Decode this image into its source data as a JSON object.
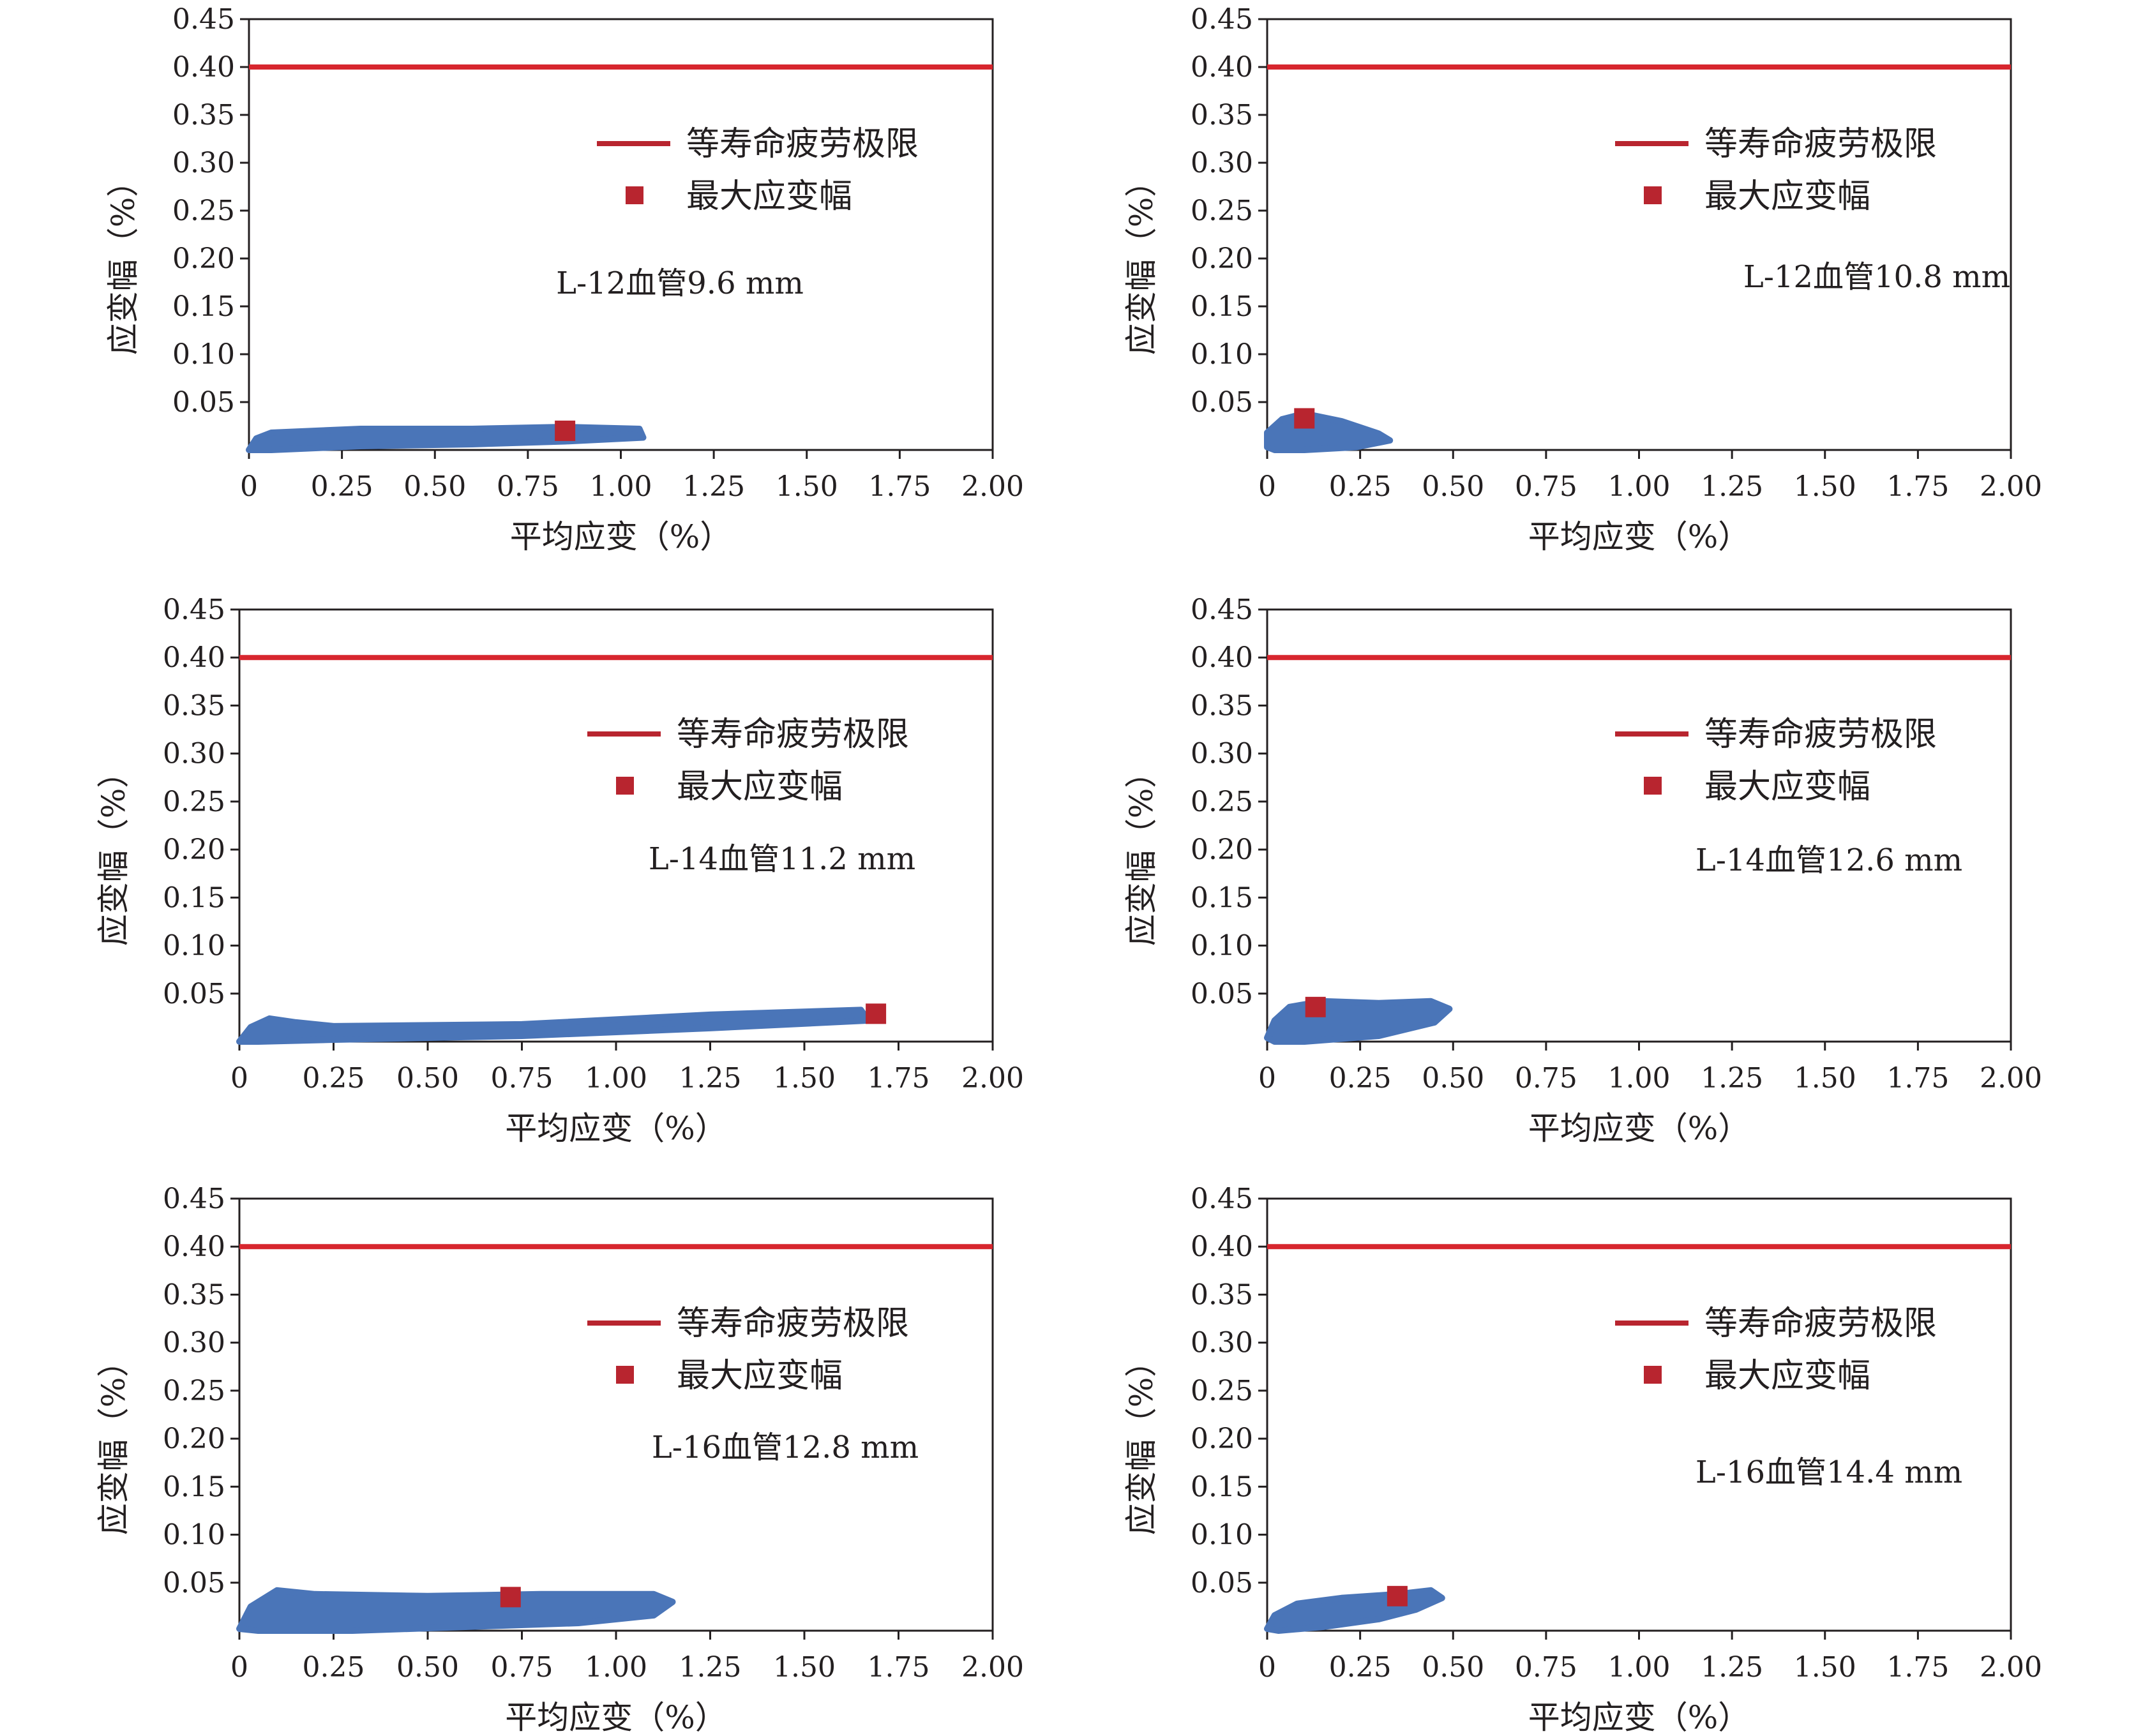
{
  "colors": {
    "limit_line": "#d7262e",
    "max_marker": "#b8252f",
    "cloud": "#4a75b8",
    "axis": "#231f20"
  },
  "chart_data": [
    {
      "type": "scatter",
      "annotation": "L-12血管9.6 mm",
      "xlabel": "平均应变（%）",
      "ylabel": "应变幅（%）",
      "xlim": [
        0,
        2.0
      ],
      "ylim": [
        0,
        0.45
      ],
      "xticks": [
        0,
        0.25,
        0.5,
        0.75,
        1.0,
        1.25,
        1.5,
        1.75,
        2.0
      ],
      "xtick_labels": [
        "0",
        "0.25",
        "0.50",
        "0.75",
        "1.00",
        "1.25",
        "1.50",
        "1.75",
        "2.00"
      ],
      "yticks": [
        0.05,
        0.1,
        0.15,
        0.2,
        0.25,
        0.3,
        0.35,
        0.4,
        0.45
      ],
      "ytick_labels": [
        "0.05",
        "0.10",
        "0.15",
        "0.20",
        "0.25",
        "0.30",
        "0.35",
        "0.40",
        "0.45"
      ],
      "legend": [
        "等寿命疲劳极限",
        "最大应变幅"
      ],
      "fatigue_limit": 0.4,
      "max_strain_amplitude": {
        "x": 0.85,
        "y": 0.02
      },
      "cloud_outline": [
        [
          0.0,
          0.0
        ],
        [
          0.02,
          0.012
        ],
        [
          0.06,
          0.018
        ],
        [
          0.3,
          0.022
        ],
        [
          0.6,
          0.022
        ],
        [
          0.85,
          0.024
        ],
        [
          1.05,
          0.022
        ],
        [
          1.06,
          0.013
        ],
        [
          0.85,
          0.009
        ],
        [
          0.6,
          0.006
        ],
        [
          0.3,
          0.004
        ],
        [
          0.06,
          0.0
        ]
      ]
    },
    {
      "type": "scatter",
      "annotation": "L-12血管10.8 mm",
      "xlabel": "平均应变（%）",
      "ylabel": "应变幅（%）",
      "xlim": [
        0,
        2.0
      ],
      "ylim": [
        0,
        0.45
      ],
      "xticks": [
        0,
        0.25,
        0.5,
        0.75,
        1.0,
        1.25,
        1.5,
        1.75,
        2.0
      ],
      "xtick_labels": [
        "0",
        "0.25",
        "0.50",
        "0.75",
        "1.00",
        "1.25",
        "1.50",
        "1.75",
        "2.00"
      ],
      "yticks": [
        0.05,
        0.1,
        0.15,
        0.2,
        0.25,
        0.3,
        0.35,
        0.4,
        0.45
      ],
      "ytick_labels": [
        "0.05",
        "0.10",
        "0.15",
        "0.20",
        "0.25",
        "0.30",
        "0.35",
        "0.40",
        "0.45"
      ],
      "legend": [
        "等寿命疲劳极限",
        "最大应变幅"
      ],
      "fatigue_limit": 0.4,
      "max_strain_amplitude": {
        "x": 0.1,
        "y": 0.033
      },
      "cloud_outline": [
        [
          0.0,
          0.003
        ],
        [
          0.0,
          0.018
        ],
        [
          0.04,
          0.032
        ],
        [
          0.1,
          0.038
        ],
        [
          0.2,
          0.03
        ],
        [
          0.3,
          0.017
        ],
        [
          0.33,
          0.01
        ],
        [
          0.24,
          0.003
        ],
        [
          0.1,
          0.0
        ],
        [
          0.02,
          0.0
        ]
      ]
    },
    {
      "type": "scatter",
      "annotation": "L-14血管11.2 mm",
      "xlabel": "平均应变（%）",
      "ylabel": "应变幅（%）",
      "xlim": [
        0,
        2.0
      ],
      "ylim": [
        0,
        0.45
      ],
      "xticks": [
        0,
        0.25,
        0.5,
        0.75,
        1.0,
        1.25,
        1.5,
        1.75,
        2.0
      ],
      "xtick_labels": [
        "0",
        "0.25",
        "0.50",
        "0.75",
        "1.00",
        "1.25",
        "1.50",
        "1.75",
        "2.00"
      ],
      "yticks": [
        0.05,
        0.1,
        0.15,
        0.2,
        0.25,
        0.3,
        0.35,
        0.4,
        0.45
      ],
      "ytick_labels": [
        "0.05",
        "0.10",
        "0.15",
        "0.20",
        "0.25",
        "0.30",
        "0.35",
        "0.40",
        "0.45"
      ],
      "legend": [
        "等寿命疲劳极限",
        "最大应变幅"
      ],
      "fatigue_limit": 0.4,
      "max_strain_amplitude": {
        "x": 1.69,
        "y": 0.029
      },
      "cloud_outline": [
        [
          0.0,
          0.0
        ],
        [
          0.03,
          0.015
        ],
        [
          0.08,
          0.024
        ],
        [
          0.15,
          0.02
        ],
        [
          0.25,
          0.016
        ],
        [
          0.75,
          0.018
        ],
        [
          1.25,
          0.028
        ],
        [
          1.65,
          0.033
        ],
        [
          1.67,
          0.022
        ],
        [
          1.25,
          0.014
        ],
        [
          0.75,
          0.006
        ],
        [
          0.25,
          0.002
        ],
        [
          0.05,
          0.0
        ]
      ]
    },
    {
      "type": "scatter",
      "annotation": "L-14血管12.6 mm",
      "xlabel": "平均应变（%）",
      "ylabel": "应变幅（%）",
      "xlim": [
        0,
        2.0
      ],
      "ylim": [
        0,
        0.45
      ],
      "xticks": [
        0,
        0.25,
        0.5,
        0.75,
        1.0,
        1.25,
        1.5,
        1.75,
        2.0
      ],
      "xtick_labels": [
        "0",
        "0.25",
        "0.50",
        "0.75",
        "1.00",
        "1.25",
        "1.50",
        "1.75",
        "2.00"
      ],
      "yticks": [
        0.05,
        0.1,
        0.15,
        0.2,
        0.25,
        0.3,
        0.35,
        0.4,
        0.45
      ],
      "ytick_labels": [
        "0.05",
        "0.10",
        "0.15",
        "0.20",
        "0.25",
        "0.30",
        "0.35",
        "0.40",
        "0.45"
      ],
      "legend": [
        "等寿命疲劳极限",
        "最大应变幅"
      ],
      "fatigue_limit": 0.4,
      "max_strain_amplitude": {
        "x": 0.13,
        "y": 0.036
      },
      "cloud_outline": [
        [
          0.0,
          0.004
        ],
        [
          0.02,
          0.022
        ],
        [
          0.06,
          0.036
        ],
        [
          0.15,
          0.042
        ],
        [
          0.3,
          0.04
        ],
        [
          0.44,
          0.042
        ],
        [
          0.49,
          0.034
        ],
        [
          0.45,
          0.02
        ],
        [
          0.3,
          0.006
        ],
        [
          0.1,
          0.0
        ],
        [
          0.02,
          0.0
        ]
      ]
    },
    {
      "type": "scatter",
      "annotation": "L-16血管12.8 mm",
      "xlabel": "平均应变（%）",
      "ylabel": "应变幅（%）",
      "xlim": [
        0,
        2.0
      ],
      "ylim": [
        0,
        0.45
      ],
      "xticks": [
        0,
        0.25,
        0.5,
        0.75,
        1.0,
        1.25,
        1.5,
        1.75,
        2.0
      ],
      "xtick_labels": [
        "0",
        "0.25",
        "0.50",
        "0.75",
        "1.00",
        "1.25",
        "1.50",
        "1.75",
        "2.00"
      ],
      "yticks": [
        0.05,
        0.1,
        0.15,
        0.2,
        0.25,
        0.3,
        0.35,
        0.4,
        0.45
      ],
      "ytick_labels": [
        "0.05",
        "0.10",
        "0.15",
        "0.20",
        "0.25",
        "0.30",
        "0.35",
        "0.40",
        "0.45"
      ],
      "legend": [
        "等寿命疲劳极限",
        "最大应变幅"
      ],
      "fatigue_limit": 0.4,
      "max_strain_amplitude": {
        "x": 0.72,
        "y": 0.035
      },
      "cloud_outline": [
        [
          0.0,
          0.002
        ],
        [
          0.03,
          0.025
        ],
        [
          0.1,
          0.042
        ],
        [
          0.2,
          0.038
        ],
        [
          0.5,
          0.036
        ],
        [
          0.8,
          0.038
        ],
        [
          1.1,
          0.038
        ],
        [
          1.15,
          0.03
        ],
        [
          1.1,
          0.016
        ],
        [
          0.9,
          0.008
        ],
        [
          0.6,
          0.004
        ],
        [
          0.3,
          0.0
        ],
        [
          0.05,
          0.0
        ]
      ]
    },
    {
      "type": "scatter",
      "annotation": "L-16血管14.4 mm",
      "xlabel": "平均应变（%）",
      "ylabel": "应变幅（%）",
      "xlim": [
        0,
        2.0
      ],
      "ylim": [
        0,
        0.45
      ],
      "xticks": [
        0,
        0.25,
        0.5,
        0.75,
        1.0,
        1.25,
        1.5,
        1.75,
        2.0
      ],
      "xtick_labels": [
        "0",
        "0.25",
        "0.50",
        "0.75",
        "1.00",
        "1.25",
        "1.50",
        "1.75",
        "2.00"
      ],
      "yticks": [
        0.05,
        0.1,
        0.15,
        0.2,
        0.25,
        0.3,
        0.35,
        0.4,
        0.45
      ],
      "ytick_labels": [
        "0.05",
        "0.10",
        "0.15",
        "0.20",
        "0.25",
        "0.30",
        "0.35",
        "0.40",
        "0.45"
      ],
      "legend": [
        "等寿命疲劳极限",
        "最大应变幅"
      ],
      "fatigue_limit": 0.4,
      "max_strain_amplitude": {
        "x": 0.35,
        "y": 0.036
      },
      "cloud_outline": [
        [
          0.0,
          0.002
        ],
        [
          0.02,
          0.016
        ],
        [
          0.08,
          0.028
        ],
        [
          0.2,
          0.034
        ],
        [
          0.35,
          0.038
        ],
        [
          0.44,
          0.042
        ],
        [
          0.47,
          0.034
        ],
        [
          0.4,
          0.022
        ],
        [
          0.3,
          0.012
        ],
        [
          0.15,
          0.004
        ],
        [
          0.03,
          0.0
        ]
      ]
    }
  ]
}
